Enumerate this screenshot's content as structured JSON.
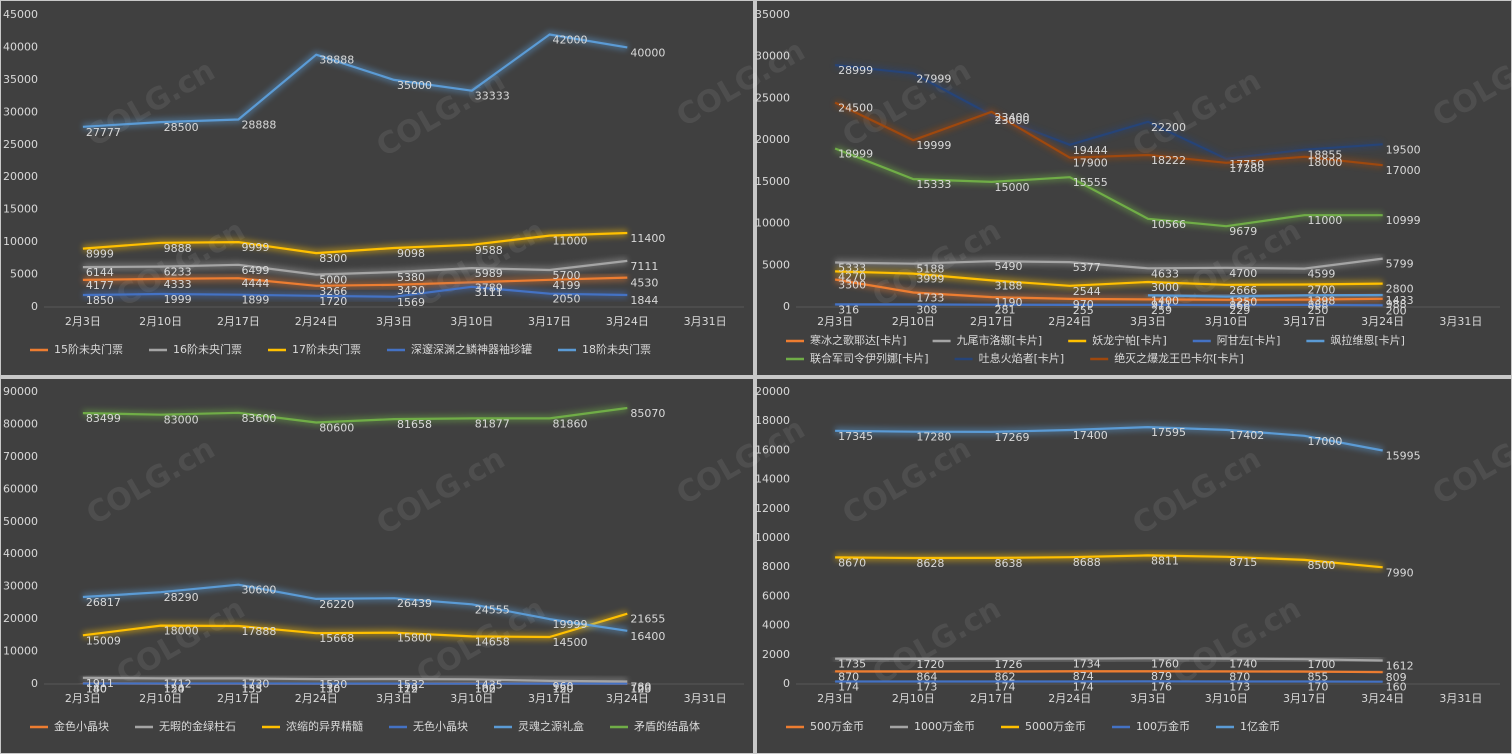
{
  "watermark": "COLG.cn",
  "chart_data": [
    {
      "type": "line",
      "grid": false,
      "legend": "bottom",
      "categories": [
        "2月3日",
        "2月10日",
        "2月17日",
        "2月24日",
        "3月3日",
        "3月10日",
        "3月17日",
        "3月24日",
        "3月31日"
      ],
      "ylim": [
        0,
        45000
      ],
      "yticks": [
        0,
        5000,
        10000,
        15000,
        20000,
        25000,
        30000,
        35000,
        40000,
        45000
      ],
      "series": [
        {
          "name": "15阶未央门票",
          "color": "#ed7d31",
          "values": [
            4177,
            4333,
            4444,
            3266,
            3420,
            3789,
            4199,
            4530,
            null
          ]
        },
        {
          "name": "16阶未央门票",
          "color": "#a5a5a5",
          "values": [
            6144,
            6233,
            6499,
            5000,
            5380,
            5989,
            5700,
            7111,
            null
          ]
        },
        {
          "name": "17阶未央门票",
          "color": "#ffc000",
          "values": [
            8999,
            9888,
            9999,
            8300,
            9098,
            9588,
            11000,
            11400,
            null
          ]
        },
        {
          "name": "深邃深渊之鳞神器袖珍罐",
          "color": "#4472c4",
          "values": [
            1850,
            1999,
            1899,
            1720,
            1569,
            3111,
            2050,
            1844,
            null
          ]
        },
        {
          "name": "18阶未央门票",
          "color": "#5b9bd5",
          "values": [
            27777,
            28500,
            28888,
            38888,
            35000,
            33333,
            42000,
            40000,
            null
          ]
        }
      ]
    },
    {
      "type": "line",
      "grid": false,
      "legend": "bottom",
      "categories": [
        "2月3日",
        "2月10日",
        "2月17日",
        "2月24日",
        "3月3日",
        "3月10日",
        "3月17日",
        "3月24日",
        "3月31日"
      ],
      "ylim": [
        0,
        35000
      ],
      "yticks": [
        0,
        5000,
        10000,
        15000,
        20000,
        25000,
        30000,
        35000
      ],
      "series": [
        {
          "name": "寒冰之歌耶达[卡片]",
          "color": "#ed7d31",
          "values": [
            3300,
            1733,
            1190,
            970,
            911,
            866,
            888,
            988,
            null
          ]
        },
        {
          "name": "九尾市洛娜[卡片]",
          "color": "#a5a5a5",
          "values": [
            5333,
            5188,
            5490,
            5377,
            4633,
            4700,
            4599,
            5799,
            null
          ]
        },
        {
          "name": "妖龙宁帕[卡片]",
          "color": "#ffc000",
          "values": [
            4270,
            3999,
            3188,
            2544,
            3000,
            2666,
            2700,
            2800,
            null
          ]
        },
        {
          "name": "阿甘左[卡片]",
          "color": "#4472c4",
          "values": [
            316,
            308,
            281,
            255,
            259,
            229,
            250,
            200,
            null
          ]
        },
        {
          "name": "飒拉维恩[卡片]",
          "color": "#5b9bd5",
          "values": [
            null,
            null,
            null,
            null,
            1400,
            1250,
            1398,
            1433,
            null
          ]
        },
        {
          "name": "联合军司令伊列娜[卡片]",
          "color": "#70ad47",
          "values": [
            18999,
            15333,
            15000,
            15555,
            10566,
            9679,
            11000,
            10999,
            null
          ]
        },
        {
          "name": "吐息火焰者[卡片]",
          "color": "#264478",
          "values": [
            28999,
            27999,
            23000,
            19444,
            22200,
            17750,
            18855,
            19500,
            null
          ]
        },
        {
          "name": "绝灭之爆龙王巴卡尔[卡片]",
          "color": "#9e480e",
          "values": [
            24500,
            19999,
            23400,
            17900,
            18222,
            17288,
            18000,
            17000,
            null
          ]
        }
      ]
    },
    {
      "type": "line",
      "grid": false,
      "legend": "bottom",
      "categories": [
        "2月3日",
        "2月10日",
        "2月17日",
        "2月24日",
        "3月3日",
        "3月10日",
        "3月17日",
        "3月24日",
        "3月31日"
      ],
      "ylim": [
        0,
        90000
      ],
      "yticks": [
        0,
        10000,
        20000,
        30000,
        40000,
        50000,
        60000,
        70000,
        80000,
        90000
      ],
      "series": [
        {
          "name": "金色小晶块",
          "color": "#ed7d31",
          "values": [
            180,
            124,
            133,
            110,
            129,
            160,
            150,
            120,
            null
          ]
        },
        {
          "name": "无暇的金绿柱石",
          "color": "#a5a5a5",
          "values": [
            1911,
            1712,
            1730,
            1520,
            1532,
            1435,
            960,
            780,
            null
          ]
        },
        {
          "name": "浓缩的异界精髓",
          "color": "#ffc000",
          "values": [
            15009,
            18000,
            17888,
            15668,
            15800,
            14658,
            14500,
            21655,
            null
          ]
        },
        {
          "name": "无色小晶块",
          "color": "#4472c4",
          "values": [
            140,
            150,
            155,
            130,
            112,
            102,
            120,
            103,
            null
          ]
        },
        {
          "name": "灵魂之源礼盒",
          "color": "#5b9bd5",
          "values": [
            26817,
            28290,
            30600,
            26220,
            26439,
            24555,
            19999,
            16400,
            null
          ]
        },
        {
          "name": "矛盾的结晶体",
          "color": "#70ad47",
          "values": [
            83499,
            83000,
            83600,
            80600,
            81658,
            81877,
            81860,
            85070,
            null
          ]
        }
      ]
    },
    {
      "type": "line",
      "grid": false,
      "legend": "bottom",
      "categories": [
        "2月3日",
        "2月10日",
        "2月17日",
        "2月24日",
        "3月3日",
        "3月10日",
        "3月17日",
        "3月24日",
        "3月31日"
      ],
      "ylim": [
        0,
        20000
      ],
      "yticks": [
        0,
        2000,
        4000,
        6000,
        8000,
        10000,
        12000,
        14000,
        16000,
        18000,
        20000
      ],
      "series": [
        {
          "name": "500万金币",
          "color": "#ed7d31",
          "values": [
            870,
            864,
            862,
            874,
            879,
            870,
            855,
            809,
            null
          ]
        },
        {
          "name": "1000万金币",
          "color": "#a5a5a5",
          "values": [
            1735,
            1720,
            1726,
            1734,
            1760,
            1740,
            1700,
            1612,
            null
          ]
        },
        {
          "name": "5000万金币",
          "color": "#ffc000",
          "values": [
            8670,
            8628,
            8638,
            8688,
            8811,
            8715,
            8500,
            7990,
            null
          ]
        },
        {
          "name": "100万金币",
          "color": "#4472c4",
          "values": [
            174,
            173,
            174,
            174,
            176,
            173,
            170,
            160,
            null
          ]
        },
        {
          "name": "1亿金币",
          "color": "#5b9bd5",
          "values": [
            17345,
            17280,
            17269,
            17400,
            17595,
            17402,
            17000,
            15995,
            null
          ]
        }
      ]
    }
  ]
}
